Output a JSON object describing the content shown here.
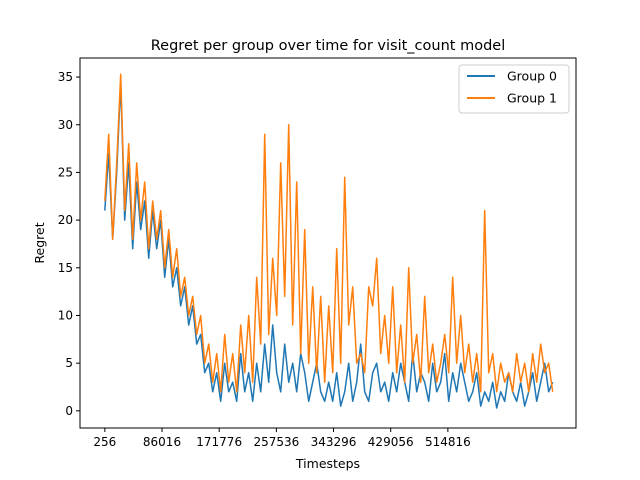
{
  "chart_data": {
    "type": "line",
    "title": "Regret per group over time for visit_count model",
    "xlabel": "Timesteps",
    "ylabel": "Regret",
    "xlim": [
      -37000,
      707000
    ],
    "ylim": [
      -1.8,
      37.0
    ],
    "xticks": [
      256,
      86016,
      171776,
      257536,
      343296,
      429056,
      514816
    ],
    "xtick_labels": [
      "256",
      "86016",
      "171776",
      "257536",
      "343296",
      "429056",
      "514816"
    ],
    "yticks": [
      0,
      5,
      10,
      15,
      20,
      25,
      30,
      35
    ],
    "ytick_labels": [
      "0",
      "5",
      "10",
      "15",
      "20",
      "25",
      "30",
      "35"
    ],
    "grid": false,
    "legend_position": "top-right",
    "series": [
      {
        "name": "Group 0",
        "color": "#1f77b4",
        "x": [
          256,
          6000,
          12000,
          18000,
          24000,
          30000,
          36000,
          42000,
          48000,
          54000,
          60000,
          66000,
          72000,
          78000,
          84000,
          90000,
          96000,
          102000,
          108000,
          114000,
          120000,
          126000,
          132000,
          138000,
          144000,
          150000,
          156000,
          162000,
          168000,
          174000,
          180000,
          186000,
          192000,
          198000,
          204000,
          210000,
          216000,
          222000,
          228000,
          234000,
          240000,
          246000,
          252000,
          258000,
          264000,
          270000,
          276000,
          282000,
          288000,
          294000,
          300000,
          306000,
          312000,
          318000,
          324000,
          330000,
          336000,
          342000,
          348000,
          354000,
          360000,
          366000,
          372000,
          378000,
          384000,
          390000,
          396000,
          402000,
          408000,
          414000,
          420000,
          426000,
          432000,
          438000,
          444000,
          450000,
          456000,
          462000,
          468000,
          474000,
          480000,
          486000,
          492000,
          498000,
          504000,
          510000,
          516000,
          522000,
          528000,
          534000,
          540000,
          546000,
          552000,
          558000,
          564000,
          570000,
          576000,
          582000,
          588000,
          594000,
          600000,
          606000,
          612000,
          618000,
          624000,
          630000,
          636000,
          642000,
          648000,
          654000,
          660000,
          666000,
          672000
        ],
        "y": [
          21,
          27,
          18,
          25,
          34.5,
          20,
          26,
          17,
          24,
          19,
          22,
          16,
          21,
          17,
          20,
          14,
          18,
          13,
          15,
          11,
          13,
          9,
          11,
          7,
          8,
          4,
          5,
          2,
          4,
          1,
          5,
          2,
          3,
          1,
          6,
          2,
          4,
          1,
          5,
          2,
          7,
          3,
          9,
          4,
          2,
          7,
          3,
          5,
          2,
          6,
          4,
          1,
          3,
          5,
          2,
          1,
          3,
          1,
          4,
          0.5,
          2,
          5,
          1,
          3,
          7,
          2,
          1,
          4,
          5,
          2,
          3,
          1,
          4,
          2,
          5,
          3,
          1,
          6,
          2,
          4,
          3,
          1,
          5,
          2,
          3,
          6,
          1,
          4,
          2,
          5,
          3,
          1,
          2,
          4,
          0.5,
          2,
          1,
          3,
          0.3,
          2,
          1,
          4,
          2,
          1,
          3,
          0.5,
          2,
          4,
          1,
          3,
          5,
          2,
          3
        ]
      },
      {
        "name": "Group 1",
        "color": "#ff7f0e",
        "x": [
          256,
          6000,
          12000,
          18000,
          24000,
          30000,
          36000,
          42000,
          48000,
          54000,
          60000,
          66000,
          72000,
          78000,
          84000,
          90000,
          96000,
          102000,
          108000,
          114000,
          120000,
          126000,
          132000,
          138000,
          144000,
          150000,
          156000,
          162000,
          168000,
          174000,
          180000,
          186000,
          192000,
          198000,
          204000,
          210000,
          216000,
          222000,
          228000,
          234000,
          240000,
          246000,
          252000,
          258000,
          264000,
          270000,
          276000,
          282000,
          288000,
          294000,
          300000,
          306000,
          312000,
          318000,
          324000,
          330000,
          336000,
          342000,
          348000,
          354000,
          360000,
          366000,
          372000,
          378000,
          384000,
          390000,
          396000,
          402000,
          408000,
          414000,
          420000,
          426000,
          432000,
          438000,
          444000,
          450000,
          456000,
          462000,
          468000,
          474000,
          480000,
          486000,
          492000,
          498000,
          504000,
          510000,
          516000,
          522000,
          528000,
          534000,
          540000,
          546000,
          552000,
          558000,
          564000,
          570000,
          576000,
          582000,
          588000,
          594000,
          600000,
          606000,
          612000,
          618000,
          624000,
          630000,
          636000,
          642000,
          648000,
          654000,
          660000,
          666000,
          672000
        ],
        "y": [
          22,
          29,
          18,
          26,
          35.3,
          21,
          28,
          18,
          26,
          20,
          24,
          17,
          22,
          18,
          21,
          15,
          19,
          14,
          17,
          12,
          14,
          10,
          12,
          8,
          10,
          5,
          7,
          3,
          6,
          2,
          8,
          3,
          6,
          2,
          9,
          4,
          10,
          3,
          14,
          7,
          29,
          8,
          16,
          10,
          26,
          12,
          30,
          9,
          24,
          6,
          19,
          5,
          13,
          4,
          12,
          3,
          11,
          4,
          17,
          5,
          24.5,
          9,
          13,
          5,
          6,
          4,
          13,
          11,
          16,
          6,
          10,
          5,
          13,
          4,
          9,
          3,
          15,
          5,
          8,
          3,
          12,
          4,
          7,
          3,
          5,
          8,
          4,
          14,
          5,
          10,
          4,
          7,
          3,
          6,
          2,
          21,
          4,
          6,
          2,
          5,
          3,
          4,
          2,
          6,
          3,
          5,
          2,
          6,
          3,
          7,
          4,
          5,
          2
        ]
      }
    ]
  }
}
